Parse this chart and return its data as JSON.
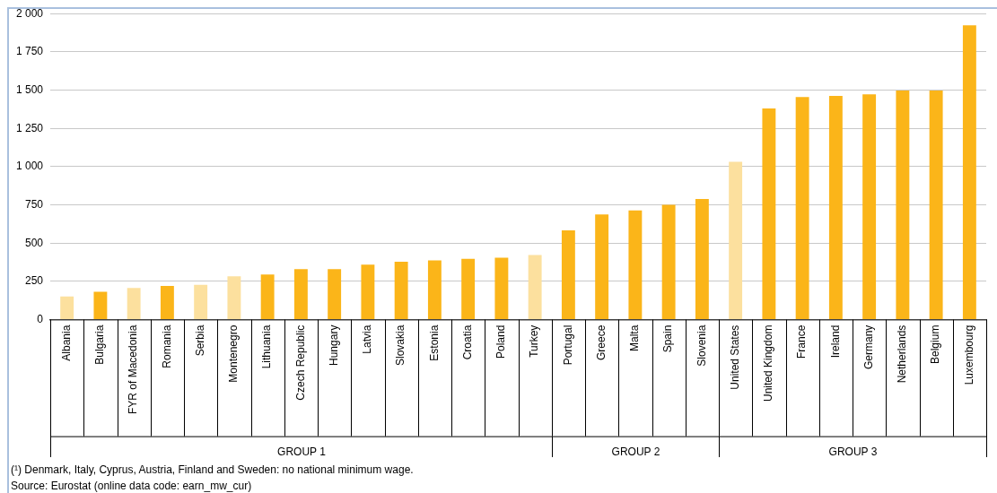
{
  "chart_data": {
    "type": "bar",
    "categories": [
      "Albania",
      "Bulgaria",
      "FYR of Macedonia",
      "Romania",
      "Serbia",
      "Montenegro",
      "Lithuania",
      "Czech Republic",
      "Hungary",
      "Latvia",
      "Slovakia",
      "Estonia",
      "Croatia",
      "Poland",
      "Turkey",
      "Portugal",
      "Greece",
      "Malta",
      "Spain",
      "Slovenia",
      "United States",
      "United Kingdom",
      "France",
      "Ireland",
      "Germany",
      "Netherlands",
      "Belgium",
      "Luxembourg"
    ],
    "values": [
      151,
      182,
      207,
      220,
      228,
      284,
      295,
      330,
      330,
      359,
      379,
      387,
      397,
      405,
      423,
      584,
      687,
      714,
      750,
      789,
      1032,
      1380,
      1455,
      1462,
      1472,
      1498,
      1498,
      1923
    ],
    "colors": [
      "#fce09e",
      "#fbb519",
      "#fce09e",
      "#fbb519",
      "#fce09e",
      "#fce09e",
      "#fbb519",
      "#fbb519",
      "#fbb519",
      "#fbb519",
      "#fbb519",
      "#fbb519",
      "#fbb519",
      "#fbb519",
      "#fce09e",
      "#fbb519",
      "#fbb519",
      "#fbb519",
      "#fbb519",
      "#fbb519",
      "#fce09e",
      "#fbb519",
      "#fbb519",
      "#fbb519",
      "#fbb519",
      "#fbb519",
      "#fbb519",
      "#fbb519"
    ],
    "ylim": [
      0,
      2000
    ],
    "yticks": [
      0,
      250,
      500,
      750,
      {
        "value": 1000,
        "label": "1 000"
      },
      {
        "value": 1250,
        "label": "1 250"
      },
      {
        "value": 1500,
        "label": "1 500"
      },
      {
        "value": 1750,
        "label": "1 750"
      },
      {
        "value": 2000,
        "label": "2 000"
      }
    ],
    "grid": "y",
    "annotations": [
      "GROUP 1",
      "GROUP 2",
      "GROUP 3",
      "(¹) Denmark, Italy, Cyprus, Austria, Finland and Sweden: no national minimum wage.",
      "Source: Eurostat (online data code: earn_mw_cur)"
    ]
  }
}
